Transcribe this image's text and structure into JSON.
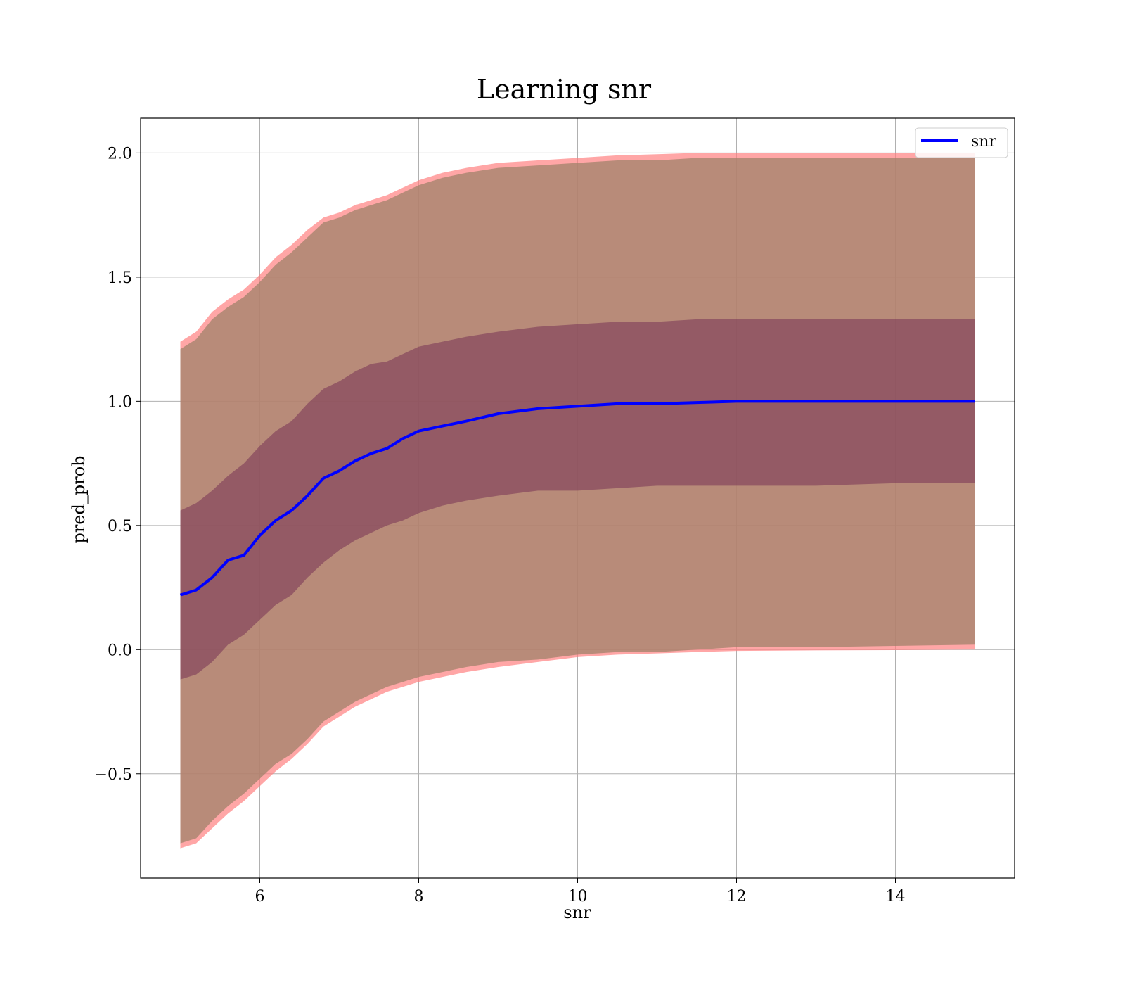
{
  "chart_data": {
    "type": "line",
    "title": "Learning snr",
    "xlabel": "snr",
    "ylabel": "pred_prob",
    "xlim": [
      4.5,
      15.5
    ],
    "ylim": [
      -0.92,
      2.14
    ],
    "xticks": [
      6,
      8,
      10,
      12,
      14
    ],
    "yticks": [
      -0.5,
      0.0,
      0.5,
      1.0,
      1.5,
      2.0
    ],
    "ytick_labels": [
      "−0.5",
      "0.0",
      "0.5",
      "1.0",
      "1.5",
      "2.0"
    ],
    "xtick_labels": [
      "6",
      "8",
      "10",
      "12",
      "14"
    ],
    "grid": true,
    "legend_position": "top-right",
    "colors": {
      "mean_line": "#0000ff",
      "band_outer": "#ff8080",
      "band_middle": "#a0826a",
      "band_inner": "#702a52"
    },
    "series": [
      {
        "name": "snr",
        "x": [
          5.0,
          5.2,
          5.4,
          5.6,
          5.8,
          6.0,
          6.2,
          6.4,
          6.6,
          6.8,
          7.0,
          7.2,
          7.4,
          7.6,
          7.8,
          8.0,
          8.3,
          8.6,
          9.0,
          9.5,
          10.0,
          10.5,
          11.0,
          11.5,
          12.0,
          13.0,
          14.0,
          15.0
        ],
        "mean": [
          0.22,
          0.24,
          0.29,
          0.36,
          0.38,
          0.46,
          0.52,
          0.56,
          0.62,
          0.69,
          0.72,
          0.76,
          0.79,
          0.81,
          0.85,
          0.88,
          0.9,
          0.92,
          0.95,
          0.97,
          0.98,
          0.99,
          0.99,
          0.995,
          1.0,
          1.0,
          1.0,
          1.0
        ],
        "upper_1std": [
          0.56,
          0.59,
          0.64,
          0.7,
          0.75,
          0.82,
          0.88,
          0.92,
          0.99,
          1.05,
          1.08,
          1.12,
          1.15,
          1.16,
          1.19,
          1.22,
          1.24,
          1.26,
          1.28,
          1.3,
          1.31,
          1.32,
          1.32,
          1.33,
          1.33,
          1.33,
          1.33,
          1.33
        ],
        "lower_1std": [
          -0.12,
          -0.1,
          -0.05,
          0.02,
          0.06,
          0.12,
          0.18,
          0.22,
          0.29,
          0.35,
          0.4,
          0.44,
          0.47,
          0.5,
          0.52,
          0.55,
          0.58,
          0.6,
          0.62,
          0.64,
          0.64,
          0.65,
          0.66,
          0.66,
          0.66,
          0.66,
          0.67,
          0.67
        ],
        "upper_2std": [
          1.21,
          1.25,
          1.33,
          1.38,
          1.42,
          1.48,
          1.55,
          1.6,
          1.66,
          1.72,
          1.74,
          1.77,
          1.79,
          1.81,
          1.84,
          1.87,
          1.9,
          1.92,
          1.94,
          1.95,
          1.96,
          1.97,
          1.97,
          1.98,
          1.98,
          1.98,
          1.98,
          1.98
        ],
        "lower_2std": [
          -0.78,
          -0.76,
          -0.69,
          -0.63,
          -0.58,
          -0.52,
          -0.46,
          -0.42,
          -0.36,
          -0.29,
          -0.25,
          -0.21,
          -0.18,
          -0.15,
          -0.13,
          -0.11,
          -0.09,
          -0.07,
          -0.05,
          -0.04,
          -0.02,
          -0.01,
          -0.01,
          0.0,
          0.01,
          0.01,
          0.015,
          0.02
        ],
        "upper_outer": [
          1.24,
          1.28,
          1.36,
          1.41,
          1.45,
          1.51,
          1.58,
          1.63,
          1.69,
          1.74,
          1.76,
          1.79,
          1.81,
          1.83,
          1.86,
          1.89,
          1.92,
          1.94,
          1.96,
          1.97,
          1.98,
          1.99,
          1.995,
          2.0,
          2.0,
          2.0,
          2.0,
          2.0
        ],
        "lower_outer": [
          -0.8,
          -0.78,
          -0.72,
          -0.66,
          -0.61,
          -0.55,
          -0.49,
          -0.44,
          -0.38,
          -0.31,
          -0.27,
          -0.23,
          -0.2,
          -0.17,
          -0.15,
          -0.13,
          -0.11,
          -0.09,
          -0.07,
          -0.05,
          -0.03,
          -0.02,
          -0.015,
          -0.01,
          -0.005,
          -0.003,
          -0.002,
          0.0
        ]
      }
    ]
  }
}
